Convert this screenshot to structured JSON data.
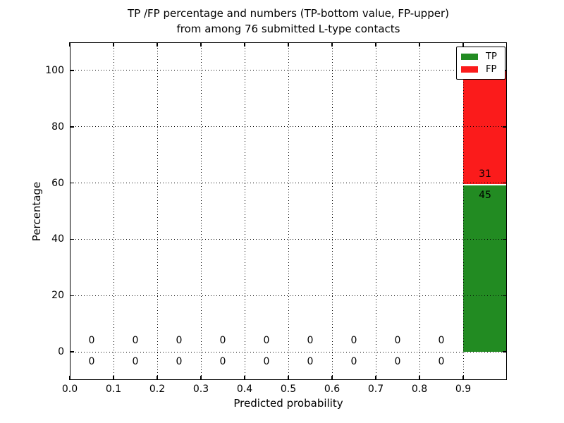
{
  "chart_data": {
    "type": "bar",
    "stacked": true,
    "title_line1": "TP /FP percentage and numbers (TP-bottom value, FP-upper)",
    "title_line2": "from among 76 submitted L-type contacts",
    "xlabel": "Predicted probability",
    "ylabel": "Percentage",
    "total_submitted_contacts": 76,
    "xlim": [
      0.0,
      1.0
    ],
    "ylim": [
      -10,
      110
    ],
    "xtick_labels": [
      "0.0",
      "0.1",
      "0.2",
      "0.3",
      "0.4",
      "0.5",
      "0.6",
      "0.7",
      "0.8",
      "0.9"
    ],
    "ytick_labels": [
      "0",
      "20",
      "40",
      "60",
      "80",
      "100"
    ],
    "grid_style": "dotted",
    "bin_width": 0.1,
    "bin_centers": [
      0.05,
      0.15,
      0.25,
      0.35,
      0.45,
      0.55,
      0.65,
      0.75,
      0.85,
      0.95
    ],
    "categories": [
      "0.0-0.1",
      "0.1-0.2",
      "0.2-0.3",
      "0.3-0.4",
      "0.4-0.5",
      "0.5-0.6",
      "0.6-0.7",
      "0.7-0.8",
      "0.8-0.9",
      "0.9-1.0"
    ],
    "series": [
      {
        "name": "TP",
        "color": "#228b22",
        "counts": [
          0,
          0,
          0,
          0,
          0,
          0,
          0,
          0,
          0,
          45
        ],
        "percent": [
          0,
          0,
          0,
          0,
          0,
          0,
          0,
          0,
          0,
          59.21
        ]
      },
      {
        "name": "FP",
        "color": "#fb1b1b",
        "counts": [
          0,
          0,
          0,
          0,
          0,
          0,
          0,
          0,
          0,
          31
        ],
        "percent": [
          0,
          0,
          0,
          0,
          0,
          0,
          0,
          0,
          0,
          40.79
        ]
      }
    ],
    "legend": {
      "position": "upper right",
      "entries": [
        "TP",
        "FP"
      ]
    }
  }
}
